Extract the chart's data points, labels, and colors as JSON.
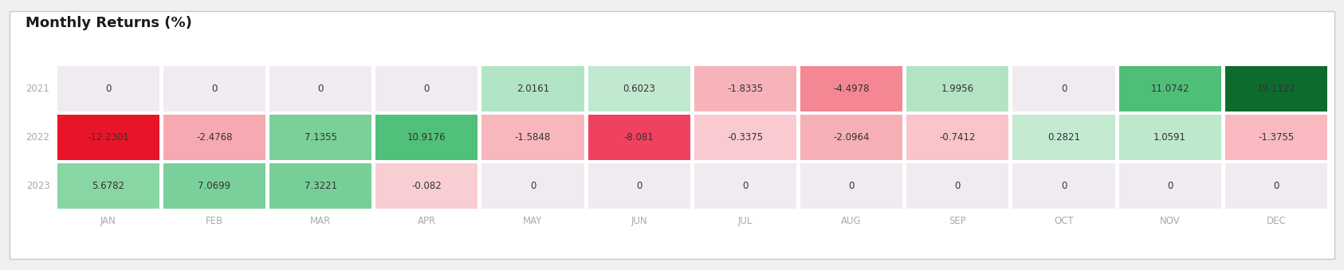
{
  "title": "Monthly Returns (%)",
  "years": [
    "2021",
    "2022",
    "2023"
  ],
  "months": [
    "JAN",
    "FEB",
    "MAR",
    "APR",
    "MAY",
    "JUN",
    "JUL",
    "AUG",
    "SEP",
    "OCT",
    "NOV",
    "DEC"
  ],
  "values": [
    [
      0,
      0,
      0,
      0,
      2.0161,
      0.6023,
      -1.8335,
      -4.4978,
      1.9956,
      0,
      11.0742,
      19.1122
    ],
    [
      -12.2301,
      -2.4768,
      7.1355,
      10.9176,
      -1.5848,
      -8.081,
      -0.3375,
      -2.0964,
      -0.7412,
      0.2821,
      1.0591,
      -1.3755
    ],
    [
      5.6782,
      7.0699,
      7.3221,
      -0.082,
      0,
      0,
      0,
      0,
      0,
      0,
      0,
      0
    ]
  ],
  "background_color": "#ffffff",
  "outer_bg": "#f0f0f0",
  "border_color": "#c8c8c8",
  "zero_color_2021": "#f2ecf2",
  "zero_color_2022": "#f5eef5",
  "zero_color_2023": "#f2ecf2",
  "zero_color": "#f0ebf0",
  "text_color": "#333333",
  "year_label_color": "#aaaaaa",
  "month_label_color": "#aaaaaa",
  "title_fontsize": 13,
  "cell_text_fontsize": 8.5,
  "year_fontsize": 8.5,
  "month_fontsize": 8.5,
  "pos_colors": [
    "#c8ecd5",
    "#82d4a0",
    "#3db86b",
    "#1a8a3c",
    "#0d6b2e"
  ],
  "neg_colors": [
    "#fad0d5",
    "#f59099",
    "#f04060",
    "#e81528",
    "#c41020"
  ]
}
